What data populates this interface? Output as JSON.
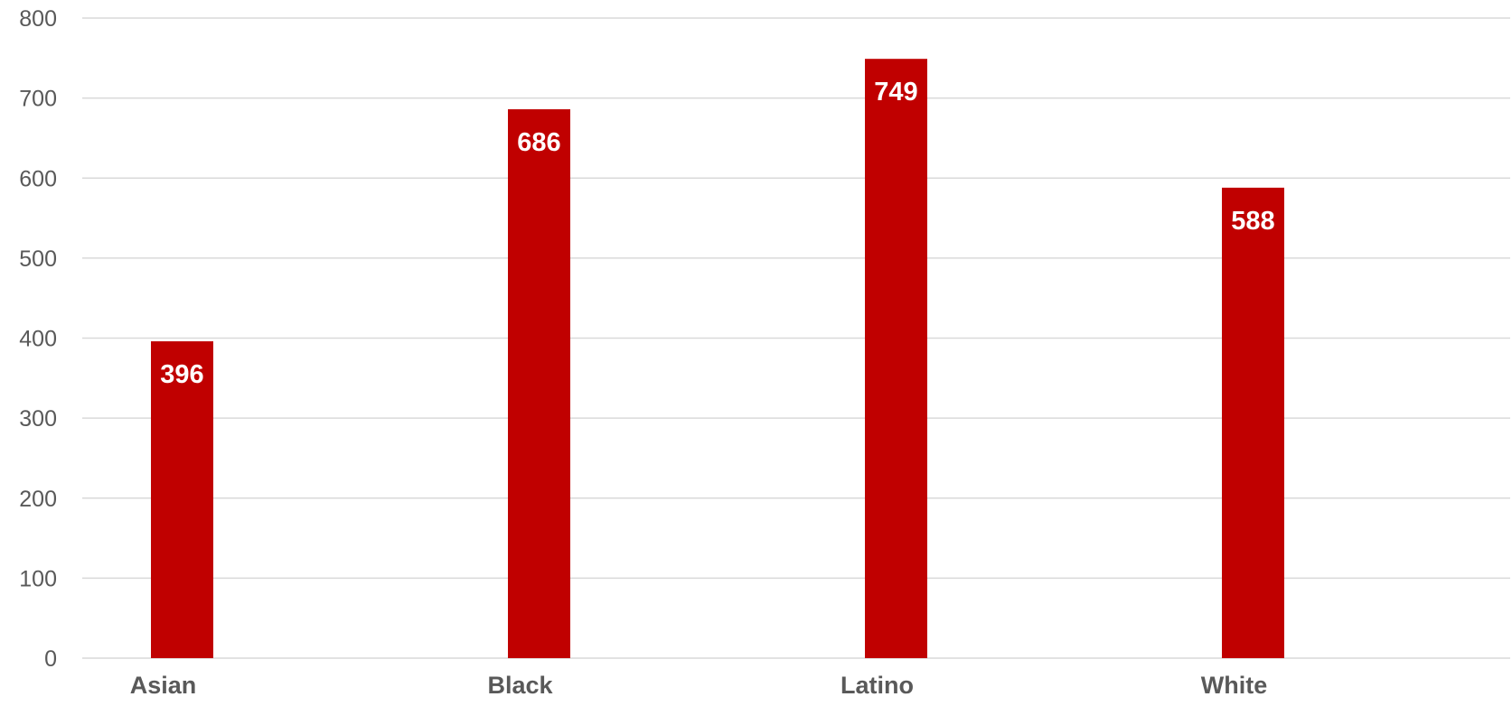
{
  "chart_data": {
    "type": "bar",
    "categories": [
      "Asian",
      "Black",
      "Latino",
      "White"
    ],
    "values": [
      396,
      686,
      749,
      588
    ],
    "data_labels": [
      "396",
      "686",
      "749",
      "588"
    ],
    "y_ticks": [
      "0",
      "100",
      "200",
      "300",
      "400",
      "500",
      "600",
      "700",
      "800"
    ],
    "ylim": [
      0,
      800
    ],
    "title": "",
    "xlabel": "",
    "ylabel": "",
    "grid": true,
    "legend": "none",
    "bar_color": "#c00000"
  }
}
